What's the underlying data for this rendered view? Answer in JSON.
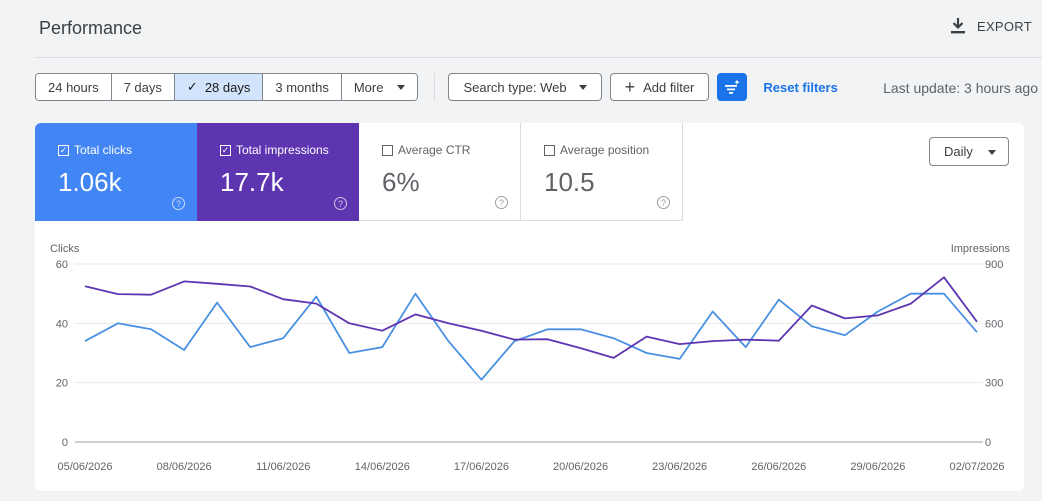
{
  "header": {
    "title": "Performance",
    "export_label": "EXPORT"
  },
  "filters": {
    "ranges": [
      "24 hours",
      "7 days",
      "28 days",
      "3 months",
      "More"
    ],
    "active_range": "28 days",
    "search_type": "Search type: Web",
    "add_filter": "Add filter",
    "reset": "Reset filters",
    "last_update": "Last update: 3 hours ago"
  },
  "metrics": {
    "clicks": {
      "label": "Total clicks",
      "value": "1.06k",
      "checked": true
    },
    "impressions": {
      "label": "Total impressions",
      "value": "17.7k",
      "checked": true
    },
    "ctr": {
      "label": "Average CTR",
      "value": "6%",
      "checked": false
    },
    "position": {
      "label": "Average position",
      "value": "10.5",
      "checked": false
    }
  },
  "granularity": "Daily",
  "colors": {
    "clicks": "#4a90e2",
    "impressions": "#5e35b1",
    "accent": "#1a73e8"
  },
  "chart_data": {
    "type": "line",
    "ylabel_left": "Clicks",
    "ylabel_right": "Impressions",
    "ylim_left": [
      0,
      60
    ],
    "ylim_right": [
      0,
      900
    ],
    "yticks_left": [
      0,
      20,
      40,
      60
    ],
    "yticks_right": [
      0,
      300,
      600,
      900
    ],
    "x": [
      "05/06/2026",
      "06/06/2026",
      "07/06/2026",
      "08/06/2026",
      "09/06/2026",
      "10/06/2026",
      "11/06/2026",
      "12/06/2026",
      "13/06/2026",
      "14/06/2026",
      "15/06/2026",
      "16/06/2026",
      "17/06/2026",
      "18/06/2026",
      "19/06/2026",
      "20/06/2026",
      "21/06/2026",
      "22/06/2026",
      "23/06/2026",
      "24/06/2026",
      "25/06/2026",
      "26/06/2026",
      "27/06/2026",
      "28/06/2026",
      "29/06/2026",
      "30/06/2026",
      "01/07/2026",
      "02/07/2026"
    ],
    "xtick_labels": [
      "05/06/2026",
      "08/06/2026",
      "11/06/2026",
      "14/06/2026",
      "17/06/2026",
      "20/06/2026",
      "23/06/2026",
      "26/06/2026",
      "29/06/2026",
      "02/07/2026"
    ],
    "series": [
      {
        "name": "Total clicks",
        "axis": "left",
        "values": [
          34,
          40,
          38,
          31,
          47,
          32,
          35,
          49,
          30,
          32,
          50,
          34,
          21,
          34,
          38,
          38,
          35,
          30,
          28,
          44,
          32,
          48,
          39,
          36,
          44,
          50,
          50,
          37
        ]
      },
      {
        "name": "Total impressions",
        "axis": "right",
        "values": [
          788,
          748,
          745,
          812,
          800,
          786,
          722,
          700,
          600,
          563,
          645,
          600,
          562,
          518,
          520,
          475,
          425,
          533,
          495,
          510,
          518,
          512,
          690,
          625,
          640,
          700,
          833,
          608
        ]
      }
    ],
    "grid": true
  }
}
